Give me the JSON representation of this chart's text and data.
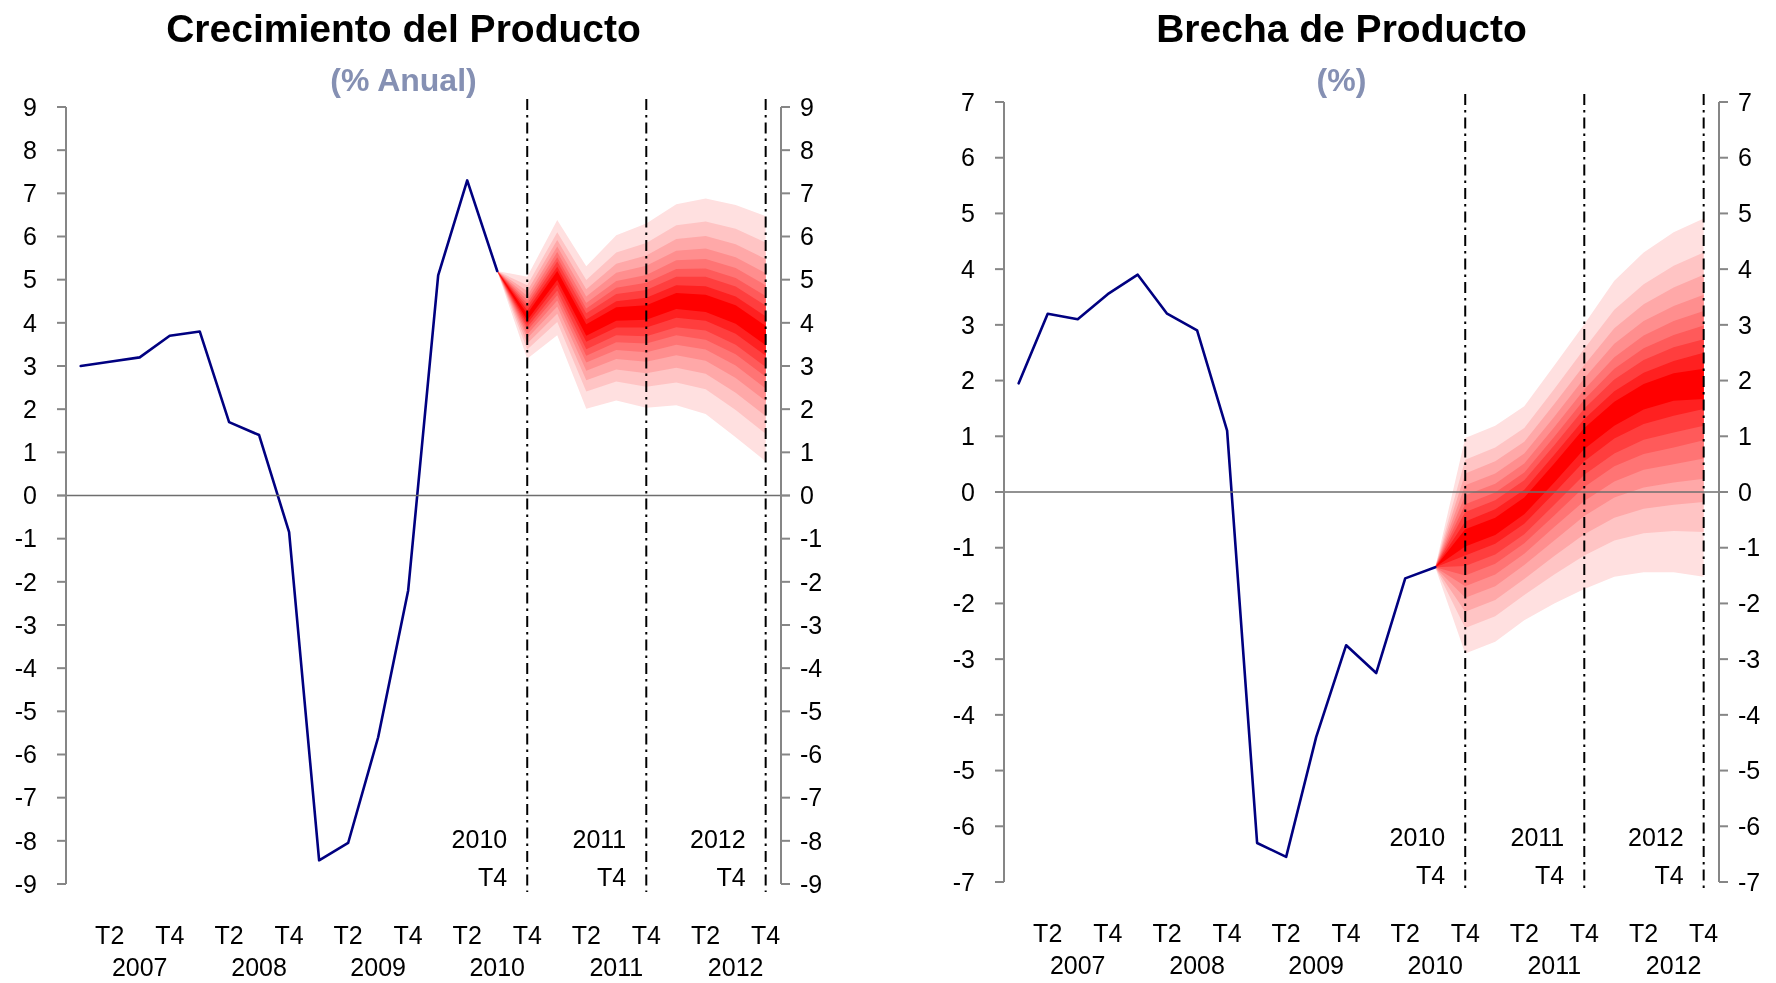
{
  "chart_data": [
    {
      "type": "line",
      "title": "Crecimiento del Producto",
      "subtitle": "(% Anual)",
      "xlim": [
        "2007-01-01",
        "2013-01-01"
      ],
      "xticks": [
        {
          "value": "2007-05-15",
          "label": "T2"
        },
        {
          "value": "2007-11-15",
          "label": "T4"
        },
        {
          "value": "2008-05-15",
          "label": "T2"
        },
        {
          "value": "2008-11-15",
          "label": "T4"
        },
        {
          "value": "2009-05-15",
          "label": "T2"
        },
        {
          "value": "2009-11-15",
          "label": "T4"
        },
        {
          "value": "2010-05-15",
          "label": "T2"
        },
        {
          "value": "2010-11-15",
          "label": "T4"
        },
        {
          "value": "2011-05-15",
          "label": "T2"
        },
        {
          "value": "2011-11-15",
          "label": "T4"
        },
        {
          "value": "2012-05-15",
          "label": "T2"
        },
        {
          "value": "2012-11-15",
          "label": "T4"
        }
      ],
      "annotations": [
        "2007",
        "2008",
        "2009",
        "2010",
        "2011",
        "2012"
      ],
      "ylim": [
        -9,
        9
      ],
      "yticks": [
        -9,
        -8,
        -7,
        -6,
        -5,
        -4,
        -3,
        -2,
        -1,
        0,
        1,
        2,
        3,
        4,
        5,
        6,
        7,
        8,
        9
      ],
      "y2lim": [
        -9,
        9
      ],
      "y2ticks": [
        -9,
        -8,
        -7,
        -6,
        -5,
        -4,
        -3,
        -2,
        -1,
        0,
        1,
        2,
        3,
        4,
        5,
        6,
        7,
        8,
        9
      ],
      "ref_lines": [
        {
          "axis": "x",
          "value": "2010-11-15",
          "label": "2010 T4",
          "color": "#000000",
          "line_style": "dashed"
        },
        {
          "axis": "x",
          "value": "2011-11-15",
          "label": "2011 T4",
          "color": "#000000",
          "line_style": "dashed"
        },
        {
          "axis": "x",
          "value": "2012-11-15",
          "label": "2012 T4",
          "color": "#000000",
          "line_style": "dashed"
        }
      ],
      "series": [
        {
          "type": "area",
          "color": "#ffe0e0",
          "x": [
            "2010-08-15",
            "2010-11-15",
            "2011-02-15",
            "2011-05-15",
            "2011-08-15",
            "2011-11-15",
            "2012-02-15",
            "2012-05-15",
            "2012-08-15",
            "2012-11-15"
          ],
          "values": [
            null,
            null,
            null,
            null,
            null,
            null,
            null,
            null,
            null,
            null
          ],
          "upper": [
            5.2,
            5.07,
            6.38,
            5.31,
            6.03,
            6.3,
            6.75,
            6.88,
            6.73,
            6.47
          ],
          "lower": [
            5.2,
            3.17,
            3.71,
            2.01,
            2.2,
            2.03,
            2.09,
            1.89,
            1.35,
            0.79
          ]
        },
        {
          "type": "area",
          "color": "#ffc4c4",
          "x": [
            "2010-08-15",
            "2010-11-15",
            "2011-02-15",
            "2011-05-15",
            "2011-08-15",
            "2011-11-15",
            "2012-02-15",
            "2012-05-15",
            "2012-08-15",
            "2012-11-15"
          ],
          "values": [
            null,
            null,
            null,
            null,
            null,
            null,
            null,
            null,
            null,
            null
          ],
          "upper": [
            5.2,
            4.87,
            6.1,
            4.99,
            5.63,
            5.85,
            6.26,
            6.35,
            6.18,
            5.86
          ],
          "lower": [
            5.2,
            3.38,
            4.02,
            2.41,
            2.64,
            2.52,
            2.62,
            2.46,
            1.98,
            1.43
          ]
        },
        {
          "type": "area",
          "color": "#ffa8a8",
          "x": [
            "2010-08-15",
            "2010-11-15",
            "2011-02-15",
            "2011-05-15",
            "2011-08-15",
            "2011-11-15",
            "2012-02-15",
            "2012-05-15",
            "2012-08-15",
            "2012-11-15"
          ],
          "values": [
            null,
            null,
            null,
            null,
            null,
            null,
            null,
            null,
            null,
            null
          ],
          "upper": [
            5.2,
            4.74,
            5.92,
            4.78,
            5.37,
            5.56,
            5.94,
            6.01,
            5.82,
            5.48
          ],
          "lower": [
            5.2,
            3.52,
            4.21,
            2.67,
            2.92,
            2.83,
            2.96,
            2.82,
            2.38,
            1.84
          ]
        },
        {
          "type": "area",
          "color": "#ff8e8e",
          "x": [
            "2010-08-15",
            "2010-11-15",
            "2011-02-15",
            "2011-05-15",
            "2011-08-15",
            "2011-11-15",
            "2012-02-15",
            "2012-05-15",
            "2012-08-15",
            "2012-11-15"
          ],
          "values": [
            null,
            null,
            null,
            null,
            null,
            null,
            null,
            null,
            null,
            null
          ],
          "upper": [
            5.2,
            4.62,
            5.77,
            4.61,
            5.16,
            5.32,
            5.67,
            5.72,
            5.52,
            5.15
          ],
          "lower": [
            5.2,
            3.64,
            4.38,
            2.89,
            3.16,
            3.1,
            3.25,
            3.12,
            2.72,
            2.19
          ]
        },
        {
          "type": "area",
          "color": "#ff7474",
          "x": [
            "2010-08-15",
            "2010-11-15",
            "2011-02-15",
            "2011-05-15",
            "2011-08-15",
            "2011-11-15",
            "2012-02-15",
            "2012-05-15",
            "2012-08-15",
            "2012-11-15"
          ],
          "values": [
            null,
            null,
            null,
            null,
            null,
            null,
            null,
            null,
            null,
            null
          ],
          "upper": [
            5.2,
            4.53,
            5.64,
            4.46,
            4.97,
            5.11,
            5.45,
            5.48,
            5.27,
            4.87
          ],
          "lower": [
            5.2,
            3.73,
            4.52,
            3.08,
            3.37,
            3.32,
            3.49,
            3.38,
            3.01,
            2.48
          ]
        },
        {
          "type": "area",
          "color": "#ff5a5a",
          "x": [
            "2010-08-15",
            "2010-11-15",
            "2011-02-15",
            "2011-05-15",
            "2011-08-15",
            "2011-11-15",
            "2012-02-15",
            "2012-05-15",
            "2012-08-15",
            "2012-11-15"
          ],
          "values": [
            null,
            null,
            null,
            null,
            null,
            null,
            null,
            null,
            null,
            null
          ],
          "upper": [
            5.2,
            4.45,
            5.52,
            4.33,
            4.81,
            4.93,
            5.25,
            5.26,
            5.04,
            4.62
          ],
          "lower": [
            5.2,
            3.82,
            4.64,
            3.24,
            3.55,
            3.52,
            3.71,
            3.61,
            3.27,
            2.75
          ]
        },
        {
          "type": "area",
          "color": "#ff3e3e",
          "x": [
            "2010-08-15",
            "2010-11-15",
            "2011-02-15",
            "2011-05-15",
            "2011-08-15",
            "2011-11-15",
            "2012-02-15",
            "2012-05-15",
            "2012-08-15",
            "2012-11-15"
          ],
          "values": [
            null,
            null,
            null,
            null,
            null,
            null,
            null,
            null,
            null,
            null
          ],
          "upper": [
            5.2,
            4.37,
            5.42,
            4.22,
            4.67,
            4.76,
            5.07,
            5.07,
            4.84,
            4.4
          ],
          "lower": [
            5.2,
            3.9,
            4.75,
            3.39,
            3.71,
            3.69,
            3.9,
            3.82,
            3.49,
            2.98
          ]
        },
        {
          "type": "area",
          "color": "#ff2020",
          "x": [
            "2010-08-15",
            "2010-11-15",
            "2011-02-15",
            "2011-05-15",
            "2011-08-15",
            "2011-11-15",
            "2012-02-15",
            "2012-05-15",
            "2012-08-15",
            "2012-11-15"
          ],
          "values": [
            null,
            null,
            null,
            null,
            null,
            null,
            null,
            null,
            null,
            null
          ],
          "upper": [
            5.2,
            4.29,
            5.3,
            4.08,
            4.5,
            4.58,
            4.87,
            4.85,
            4.61,
            4.15
          ],
          "lower": [
            5.2,
            3.98,
            4.88,
            3.56,
            3.89,
            3.89,
            4.12,
            4.05,
            3.75,
            3.24
          ]
        },
        {
          "type": "area",
          "color": "#ff0000",
          "x": [
            "2010-08-15",
            "2010-11-15",
            "2011-02-15",
            "2011-05-15",
            "2011-08-15",
            "2011-11-15",
            "2012-02-15",
            "2012-05-15",
            "2012-08-15",
            "2012-11-15"
          ],
          "values": [
            null,
            null,
            null,
            null,
            null,
            null,
            null,
            null,
            null,
            null
          ],
          "upper": [
            5.2,
            4.21,
            5.2,
            3.97,
            4.36,
            4.41,
            4.69,
            4.65,
            4.41,
            3.93
          ],
          "lower": [
            5.2,
            4.06,
            4.99,
            3.7,
            4.05,
            4.07,
            4.32,
            4.25,
            3.98,
            3.48
          ]
        },
        {
          "type": "line",
          "color": "#000080",
          "x": [
            "2007-02-15",
            "2007-05-15",
            "2007-08-15",
            "2007-11-15",
            "2008-02-15",
            "2008-05-15",
            "2008-08-15",
            "2008-11-15",
            "2009-02-15",
            "2009-05-15",
            "2009-08-15",
            "2009-11-15",
            "2010-02-15",
            "2010-05-15",
            "2010-08-15"
          ],
          "values": [
            3.0,
            3.1,
            3.2,
            3.7,
            3.8,
            1.7,
            1.4,
            -0.85,
            -8.45,
            -8.05,
            -5.6,
            -2.2,
            5.1,
            7.3,
            5.2
          ]
        }
      ]
    },
    {
      "type": "line",
      "title": "Brecha de Producto",
      "subtitle": "(%)",
      "xlim": [
        "2007-01-01",
        "2013-01-01"
      ],
      "xticks": [
        {
          "value": "2007-05-15",
          "label": "T2"
        },
        {
          "value": "2007-11-15",
          "label": "T4"
        },
        {
          "value": "2008-05-15",
          "label": "T2"
        },
        {
          "value": "2008-11-15",
          "label": "T4"
        },
        {
          "value": "2009-05-15",
          "label": "T2"
        },
        {
          "value": "2009-11-15",
          "label": "T4"
        },
        {
          "value": "2010-05-15",
          "label": "T2"
        },
        {
          "value": "2010-11-15",
          "label": "T4"
        },
        {
          "value": "2011-05-15",
          "label": "T2"
        },
        {
          "value": "2011-11-15",
          "label": "T4"
        },
        {
          "value": "2012-05-15",
          "label": "T2"
        },
        {
          "value": "2012-11-15",
          "label": "T4"
        }
      ],
      "annotations": [
        "2007",
        "2008",
        "2009",
        "2010",
        "2011",
        "2012"
      ],
      "ylim": [
        -7,
        7
      ],
      "yticks": [
        -7,
        -6,
        -5,
        -4,
        -3,
        -2,
        -1,
        0,
        1,
        2,
        3,
        4,
        5,
        6,
        7
      ],
      "y2lim": [
        -7,
        7
      ],
      "y2ticks": [
        -7,
        -6,
        -5,
        -4,
        -3,
        -2,
        -1,
        0,
        1,
        2,
        3,
        4,
        5,
        6,
        7
      ],
      "ref_lines": [
        {
          "axis": "x",
          "value": "2010-11-15",
          "label": "2010 T4",
          "color": "#000000",
          "line_style": "dashed"
        },
        {
          "axis": "x",
          "value": "2011-11-15",
          "label": "2011 T4",
          "color": "#000000",
          "line_style": "dashed"
        },
        {
          "axis": "x",
          "value": "2012-11-15",
          "label": "2012 T4",
          "color": "#000000",
          "line_style": "dashed"
        }
      ],
      "series": [
        {
          "type": "area",
          "color": "#ffe0e0",
          "x": [
            "2010-08-15",
            "2010-11-15",
            "2011-02-15",
            "2011-05-15",
            "2011-08-15",
            "2011-11-15",
            "2012-02-15",
            "2012-05-15",
            "2012-08-15",
            "2012-11-15"
          ],
          "values": [
            null,
            null,
            null,
            null,
            null,
            null,
            null,
            null,
            null,
            null
          ],
          "upper": [
            -1.35,
            0.97,
            1.19,
            1.54,
            2.27,
            3.01,
            3.79,
            4.3,
            4.66,
            4.91
          ],
          "lower": [
            -1.35,
            -2.9,
            -2.69,
            -2.3,
            -2.0,
            -1.74,
            -1.52,
            -1.44,
            -1.44,
            -1.52
          ]
        },
        {
          "type": "area",
          "color": "#ffc4c4",
          "x": [
            "2010-08-15",
            "2010-11-15",
            "2011-02-15",
            "2011-05-15",
            "2011-08-15",
            "2011-11-15",
            "2012-02-15",
            "2012-05-15",
            "2012-08-15",
            "2012-11-15"
          ],
          "values": [
            null,
            null,
            null,
            null,
            null,
            null,
            null,
            null,
            null,
            null
          ],
          "upper": [
            -1.35,
            0.58,
            0.8,
            1.15,
            1.85,
            2.57,
            3.27,
            3.73,
            4.06,
            4.3
          ],
          "lower": [
            -1.35,
            -2.44,
            -2.23,
            -1.85,
            -1.48,
            -1.14,
            -0.87,
            -0.74,
            -0.7,
            -0.72
          ]
        },
        {
          "type": "area",
          "color": "#ffa8a8",
          "x": [
            "2010-08-15",
            "2010-11-15",
            "2011-02-15",
            "2011-05-15",
            "2011-08-15",
            "2011-11-15",
            "2012-02-15",
            "2012-05-15",
            "2012-08-15",
            "2012-11-15"
          ],
          "values": [
            null,
            null,
            null,
            null,
            null,
            null,
            null,
            null,
            null,
            null
          ],
          "upper": [
            -1.35,
            0.33,
            0.55,
            0.9,
            1.58,
            2.28,
            2.94,
            3.37,
            3.67,
            3.9
          ],
          "lower": [
            -1.35,
            -2.15,
            -1.94,
            -1.56,
            -1.15,
            -0.76,
            -0.46,
            -0.3,
            -0.23,
            -0.18
          ]
        },
        {
          "type": "area",
          "color": "#ff8e8e",
          "x": [
            "2010-08-15",
            "2010-11-15",
            "2011-02-15",
            "2011-05-15",
            "2011-08-15",
            "2011-11-15",
            "2012-02-15",
            "2012-05-15",
            "2012-08-15",
            "2012-11-15"
          ],
          "values": [
            null,
            null,
            null,
            null,
            null,
            null,
            null,
            null,
            null,
            null
          ],
          "upper": [
            -1.35,
            0.12,
            0.33,
            0.69,
            1.35,
            2.04,
            2.66,
            3.07,
            3.34,
            3.54
          ],
          "lower": [
            -1.35,
            -1.9,
            -1.69,
            -1.31,
            -0.87,
            -0.43,
            -0.1,
            0.08,
            0.17,
            0.24
          ]
        },
        {
          "type": "area",
          "color": "#ff7474",
          "x": [
            "2010-08-15",
            "2010-11-15",
            "2011-02-15",
            "2011-05-15",
            "2011-08-15",
            "2011-11-15",
            "2012-02-15",
            "2012-05-15",
            "2012-08-15",
            "2012-11-15"
          ],
          "values": [
            null,
            null,
            null,
            null,
            null,
            null,
            null,
            null,
            null,
            null
          ],
          "upper": [
            -1.35,
            -0.06,
            0.15,
            0.51,
            1.16,
            1.84,
            2.42,
            2.81,
            3.07,
            3.25
          ],
          "lower": [
            -1.35,
            -1.69,
            -1.48,
            -1.11,
            -0.63,
            -0.16,
            0.19,
            0.4,
            0.5,
            0.6
          ]
        },
        {
          "type": "area",
          "color": "#ff5a5a",
          "x": [
            "2010-08-15",
            "2010-11-15",
            "2011-02-15",
            "2011-05-15",
            "2011-08-15",
            "2011-11-15",
            "2012-02-15",
            "2012-05-15",
            "2012-08-15",
            "2012-11-15"
          ],
          "values": [
            null,
            null,
            null,
            null,
            null,
            null,
            null,
            null,
            null,
            null
          ],
          "upper": [
            -1.35,
            -0.22,
            -0.01,
            0.35,
            0.99,
            1.66,
            2.21,
            2.58,
            2.82,
            2.99
          ],
          "lower": [
            -1.35,
            -1.5,
            -1.29,
            -0.92,
            -0.42,
            0.09,
            0.46,
            0.68,
            0.8,
            0.93
          ]
        },
        {
          "type": "area",
          "color": "#ff3e3e",
          "x": [
            "2010-08-15",
            "2010-11-15",
            "2011-02-15",
            "2011-05-15",
            "2011-08-15",
            "2011-11-15",
            "2012-02-15",
            "2012-05-15",
            "2012-08-15",
            "2012-11-15"
          ],
          "values": [
            null,
            null,
            null,
            null,
            null,
            null,
            null,
            null,
            null,
            null
          ],
          "upper": [
            -1.35,
            -0.36,
            -0.15,
            0.21,
            0.84,
            1.5,
            2.02,
            2.37,
            2.6,
            2.74
          ],
          "lower": [
            -1.35,
            -1.33,
            -1.12,
            -0.76,
            -0.23,
            0.31,
            0.69,
            0.94,
            1.07,
            1.19
          ]
        },
        {
          "type": "area",
          "color": "#ff2020",
          "x": [
            "2010-08-15",
            "2010-11-15",
            "2011-02-15",
            "2011-05-15",
            "2011-08-15",
            "2011-11-15",
            "2012-02-15",
            "2012-05-15",
            "2012-08-15",
            "2012-11-15"
          ],
          "values": [
            null,
            null,
            null,
            null,
            null,
            null,
            null,
            null,
            null,
            null
          ],
          "upper": [
            -1.35,
            -0.53,
            -0.31,
            0.04,
            0.67,
            1.31,
            1.81,
            2.14,
            2.35,
            2.5
          ],
          "lower": [
            -1.35,
            -1.14,
            -0.93,
            -0.57,
            -0.02,
            0.55,
            0.96,
            1.22,
            1.37,
            1.49
          ]
        },
        {
          "type": "area",
          "color": "#ff0000",
          "x": [
            "2010-08-15",
            "2010-11-15",
            "2011-02-15",
            "2011-05-15",
            "2011-08-15",
            "2011-11-15",
            "2012-02-15",
            "2012-05-15",
            "2012-08-15",
            "2012-11-15"
          ],
          "values": [
            null,
            null,
            null,
            null,
            null,
            null,
            null,
            null,
            null,
            null
          ],
          "upper": [
            -1.35,
            -0.67,
            -0.46,
            -0.1,
            0.51,
            1.15,
            1.62,
            1.94,
            2.13,
            2.21
          ],
          "lower": [
            -1.35,
            -0.98,
            -0.77,
            -0.4,
            0.17,
            0.77,
            1.19,
            1.48,
            1.64,
            1.67
          ]
        },
        {
          "type": "line",
          "color": "#000080",
          "x": [
            "2007-02-15",
            "2007-05-15",
            "2007-08-15",
            "2007-11-15",
            "2008-02-15",
            "2008-05-15",
            "2008-08-15",
            "2008-11-15",
            "2009-02-15",
            "2009-05-15",
            "2009-08-15",
            "2009-11-15",
            "2010-02-15",
            "2010-05-15",
            "2010-08-15"
          ],
          "values": [
            1.95,
            3.2,
            3.1,
            3.55,
            3.9,
            3.2,
            2.9,
            1.1,
            -6.3,
            -6.55,
            -4.4,
            -2.75,
            -3.25,
            -1.55,
            -1.35
          ]
        }
      ]
    }
  ]
}
